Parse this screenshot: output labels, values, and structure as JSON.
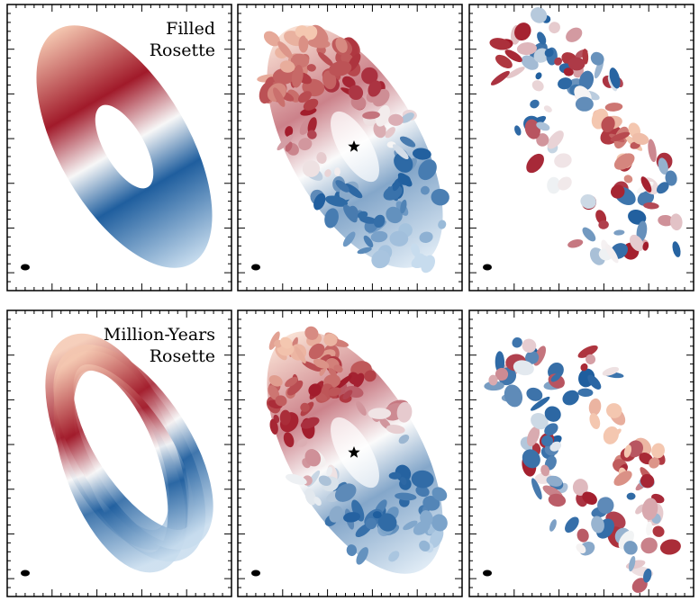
{
  "rows": [
    {
      "label_lines": [
        "Filled",
        "Rosette"
      ]
    },
    {
      "label_lines": [
        "Million-Years",
        "Rosette"
      ]
    }
  ]
}
